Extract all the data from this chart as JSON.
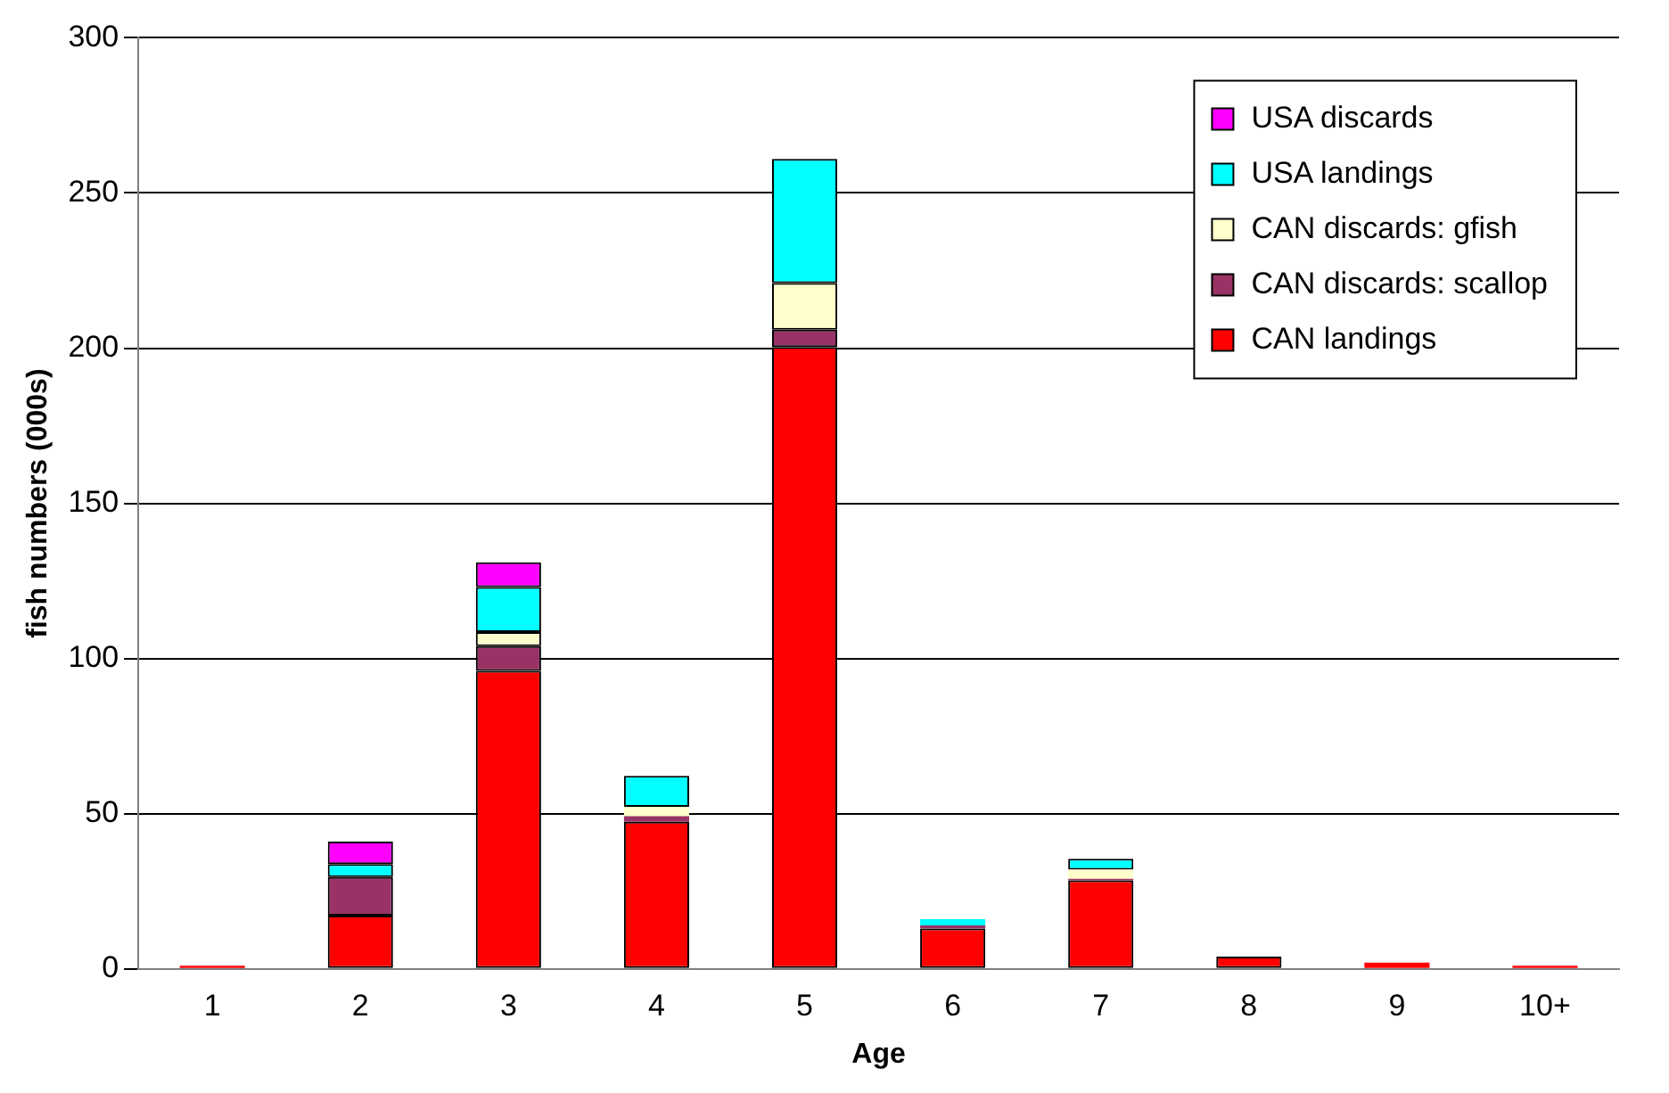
{
  "chart_data": {
    "type": "bar",
    "stacked": true,
    "xlabel": "Age",
    "ylabel": "fish numbers (000s)",
    "categories": [
      "1",
      "2",
      "3",
      "4",
      "5",
      "6",
      "7",
      "8",
      "9",
      "10+"
    ],
    "series": [
      {
        "name": "CAN landings",
        "color": "#ff0000",
        "values": [
          1,
          17.2,
          96,
          47.4,
          200.4,
          13,
          28.5,
          4,
          2,
          1
        ]
      },
      {
        "name": "CAN discards: scallop",
        "color": "#993366",
        "values": [
          0,
          12.4,
          8,
          1.8,
          5.6,
          1,
          0.5,
          0,
          0,
          0
        ]
      },
      {
        "name": "CAN discards: gfish",
        "color": "#ffffcc",
        "values": [
          0,
          0,
          4.5,
          3,
          15,
          null,
          3,
          0,
          0,
          0
        ]
      },
      {
        "name": "USA landings",
        "color": "#00ffff",
        "values": [
          0,
          4.2,
          14.5,
          10,
          40,
          2,
          3.5,
          0,
          0,
          0
        ]
      },
      {
        "name": "USA discards",
        "color": "#ff00ff",
        "values": [
          0,
          7.2,
          8,
          0,
          0,
          0,
          0,
          0,
          0,
          0
        ]
      }
    ],
    "ylim": [
      0,
      300
    ],
    "yticks": [
      0,
      50,
      100,
      150,
      200,
      250,
      300
    ],
    "grid": "y",
    "legend": "top right"
  }
}
